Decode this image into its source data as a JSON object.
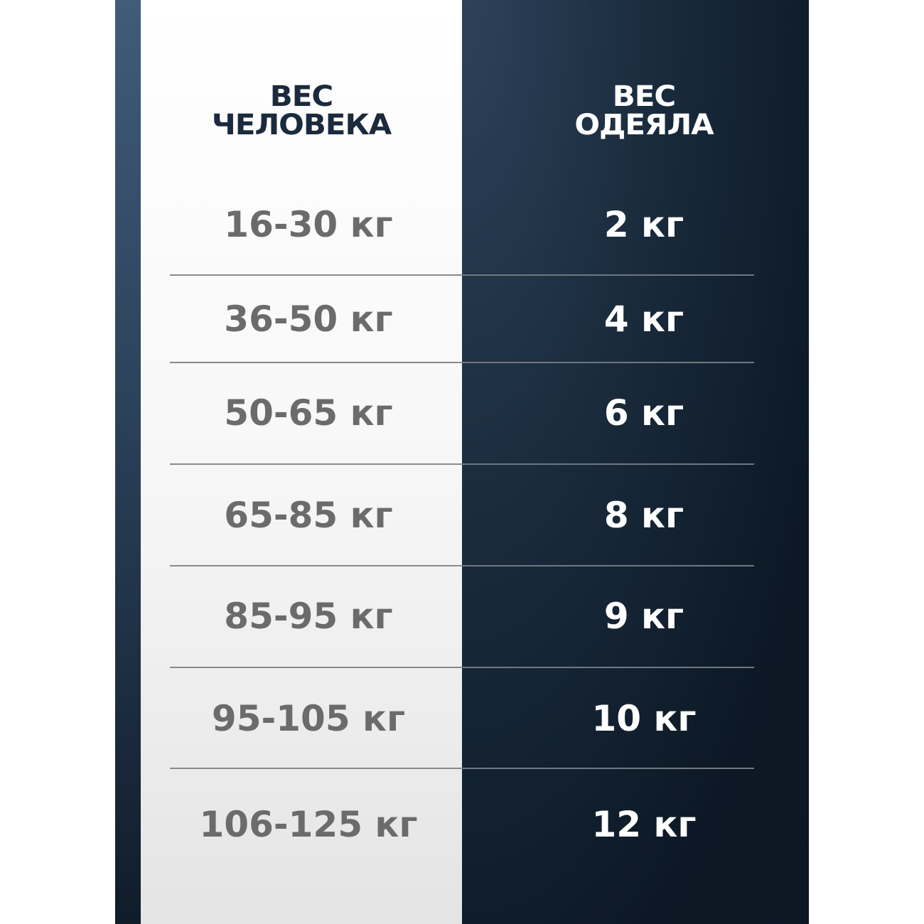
{
  "header": {
    "person_line1": "ВЕС",
    "person_line2": "ЧЕЛОВЕКА",
    "blanket_line1": "ВЕС",
    "blanket_line2": "ОДЕЯЛА"
  },
  "rows": [
    {
      "person": "16-30 кг",
      "blanket": "2 кг"
    },
    {
      "person": "36-50 кг",
      "blanket": "4 кг"
    },
    {
      "person": "50-65 кг",
      "blanket": "6 кг"
    },
    {
      "person": "65-85 кг",
      "blanket": "8 кг"
    },
    {
      "person": "85-95 кг",
      "blanket": "9 кг"
    },
    {
      "person": "95-105 кг",
      "blanket": "10 кг"
    },
    {
      "person": "106-125 кг",
      "blanket": "12 кг"
    }
  ],
  "colors": {
    "dark_panel": "#0c1825",
    "header_text": "#1b2a3d",
    "value_text": "#6b6b6b"
  }
}
